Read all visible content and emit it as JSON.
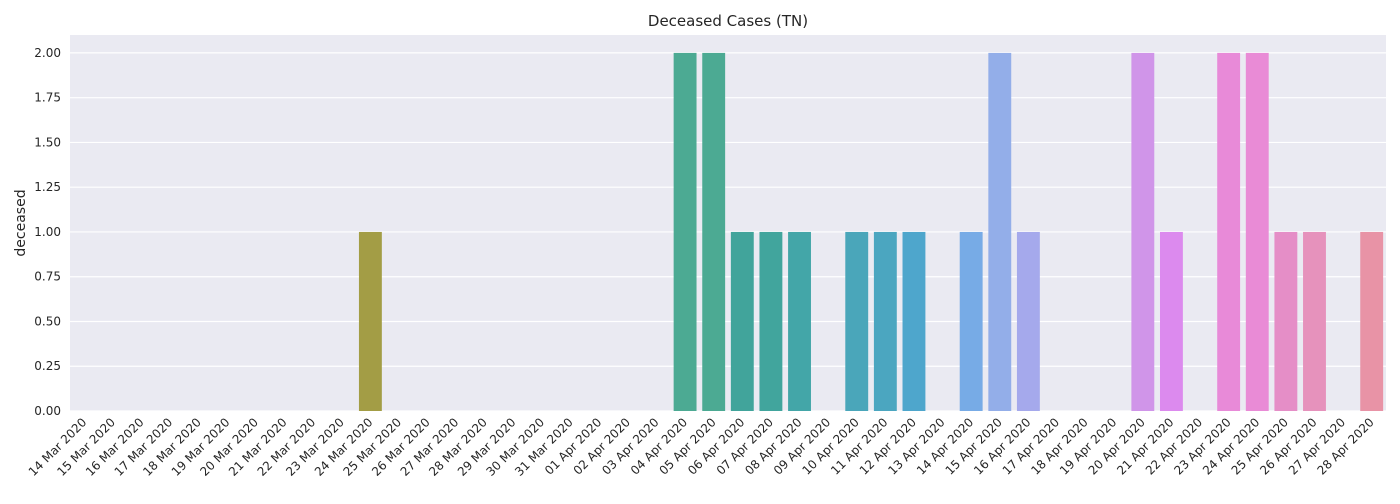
{
  "chart_data": {
    "type": "bar",
    "title": "Deceased Cases (TN)",
    "xlabel": "",
    "ylabel": "deceased",
    "ylim": [
      0,
      2.1
    ],
    "yticks": [
      "0.00",
      "0.25",
      "0.50",
      "0.75",
      "1.00",
      "1.25",
      "1.50",
      "1.75",
      "2.00"
    ],
    "grid": true,
    "legend": "none",
    "categories": [
      "14 Mar 2020",
      "15 Mar 2020",
      "16 Mar 2020",
      "17 Mar 2020",
      "18 Mar 2020",
      "19 Mar 2020",
      "20 Mar 2020",
      "21 Mar 2020",
      "22 Mar 2020",
      "23 Mar 2020",
      "24 Mar 2020",
      "25 Mar 2020",
      "26 Mar 2020",
      "27 Mar 2020",
      "28 Mar 2020",
      "29 Mar 2020",
      "30 Mar 2020",
      "31 Mar 2020",
      "01 Apr 2020",
      "02 Apr 2020",
      "03 Apr 2020",
      "04 Apr 2020",
      "05 Apr 2020",
      "06 Apr 2020",
      "07 Apr 2020",
      "08 Apr 2020",
      "09 Apr 2020",
      "10 Apr 2020",
      "11 Apr 2020",
      "12 Apr 2020",
      "13 Apr 2020",
      "14 Apr 2020",
      "15 Apr 2020",
      "16 Apr 2020",
      "17 Apr 2020",
      "18 Apr 2020",
      "19 Apr 2020",
      "20 Apr 2020",
      "21 Apr 2020",
      "22 Apr 2020",
      "23 Apr 2020",
      "24 Apr 2020",
      "25 Apr 2020",
      "26 Apr 2020",
      "27 Apr 2020",
      "28 Apr 2020"
    ],
    "values": [
      0,
      0,
      0,
      0,
      0,
      0,
      0,
      0,
      0,
      0,
      1,
      0,
      0,
      0,
      0,
      0,
      0,
      0,
      0,
      0,
      0,
      2,
      2,
      1,
      1,
      1,
      0,
      1,
      1,
      1,
      0,
      1,
      2,
      1,
      0,
      0,
      0,
      2,
      1,
      0,
      2,
      2,
      1,
      1,
      0,
      1
    ],
    "colors": [
      "#f77189",
      "#f7754f",
      "#f77a2c",
      "#e4850c",
      "#d38c32",
      "#c39237",
      "#b59839",
      "#a69d3b",
      "#97a13c",
      "#86a43c",
      "#a39d45",
      "#5eae3c",
      "#36ad4f",
      "#37aa6f",
      "#38a882",
      "#39a68f",
      "#3aa599",
      "#3ba4a1",
      "#3ca3a8",
      "#3da2af",
      "#3ea1b6",
      "#4caa93",
      "#4caa93",
      "#41a49b",
      "#41a59d",
      "#43a6a8",
      "#4aa7b8",
      "#4aa6ba",
      "#4ba6c0",
      "#4ea6cc",
      "#72a3e8",
      "#77abe6",
      "#93aee9",
      "#a5a9ec",
      "#b9a2f1",
      "#cc98f0",
      "#d68fee",
      "#d095e9",
      "#dc8aee",
      "#e48aea",
      "#e88ad8",
      "#e98bd6",
      "#e58ec7",
      "#e692bc",
      "#e894b0",
      "#e893a6"
    ]
  }
}
